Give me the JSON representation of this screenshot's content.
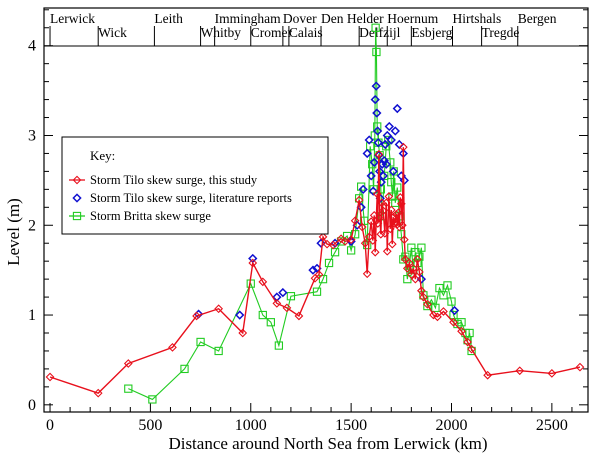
{
  "chart_data": {
    "type": "scatter",
    "xlabel": "Distance around North Sea from Lerwick (km)",
    "ylabel": "Level (m)",
    "xlim": [
      -30,
      2680
    ],
    "ylim": [
      -0.08,
      4.42
    ],
    "xticks": [
      0,
      500,
      1000,
      1500,
      2000,
      2500
    ],
    "yticks": [
      0,
      1,
      2,
      3,
      4
    ],
    "x_minor_step": 100,
    "y_minor_step": 0.2,
    "grid": false,
    "legend_position": "left",
    "legend_title": "Key:",
    "top_station_labels": [
      {
        "name": "Lerwick",
        "x": 0,
        "row": 1
      },
      {
        "name": "Wick",
        "x": 240,
        "row": 2
      },
      {
        "name": "Leith",
        "x": 520,
        "row": 1
      },
      {
        "name": "Whitby",
        "x": 750,
        "row": 2
      },
      {
        "name": "Immingham",
        "x": 820,
        "row": 1
      },
      {
        "name": "Cromer",
        "x": 1000,
        "row": 2
      },
      {
        "name": "Dover",
        "x": 1160,
        "row": 1
      },
      {
        "name": "Calais",
        "x": 1190,
        "row": 2
      },
      {
        "name": "Den Helder",
        "x": 1350,
        "row": 1
      },
      {
        "name": "Delfzijl",
        "x": 1540,
        "row": 2
      },
      {
        "name": "Hoernum",
        "x": 1680,
        "row": 1
      },
      {
        "name": "Esbjerg",
        "x": 1800,
        "row": 2
      },
      {
        "name": "Hirtshals",
        "x": 2005,
        "row": 1
      },
      {
        "name": "Tregde",
        "x": 2150,
        "row": 2
      },
      {
        "name": "Bergen",
        "x": 2330,
        "row": 1
      }
    ],
    "series": [
      {
        "name": "Storm Tilo skew surge, this study",
        "color": "#e8101c",
        "marker": "diamond",
        "connected": true,
        "points": [
          [
            0,
            0.31
          ],
          [
            240,
            0.13
          ],
          [
            390,
            0.46
          ],
          [
            610,
            0.64
          ],
          [
            730,
            0.99
          ],
          [
            840,
            1.07
          ],
          [
            960,
            0.8
          ],
          [
            1010,
            1.58
          ],
          [
            1060,
            1.37
          ],
          [
            1130,
            1.13
          ],
          [
            1180,
            1.08
          ],
          [
            1240,
            0.99
          ],
          [
            1320,
            1.41
          ],
          [
            1340,
            1.45
          ],
          [
            1360,
            1.87
          ],
          [
            1380,
            1.79
          ],
          [
            1410,
            1.78
          ],
          [
            1450,
            1.85
          ],
          [
            1470,
            1.82
          ],
          [
            1500,
            1.84
          ],
          [
            1520,
            2.05
          ],
          [
            1540,
            2.28
          ],
          [
            1555,
            1.98
          ],
          [
            1570,
            1.8
          ],
          [
            1580,
            1.46
          ],
          [
            1590,
            1.87
          ],
          [
            1600,
            2.04
          ],
          [
            1608,
            1.83
          ],
          [
            1615,
            2.11
          ],
          [
            1620,
            1.7
          ],
          [
            1625,
            2.05
          ],
          [
            1630,
            2.35
          ],
          [
            1633,
            2.02
          ],
          [
            1638,
            2.79
          ],
          [
            1643,
            2.08
          ],
          [
            1648,
            1.9
          ],
          [
            1653,
            2.25
          ],
          [
            1660,
            2.16
          ],
          [
            1668,
            1.91
          ],
          [
            1675,
            2.25
          ],
          [
            1680,
            1.71
          ],
          [
            1688,
            2.32
          ],
          [
            1695,
            1.96
          ],
          [
            1700,
            2.17
          ],
          [
            1705,
            1.79
          ],
          [
            1710,
            2.09
          ],
          [
            1715,
            2.02
          ],
          [
            1720,
            2.04
          ],
          [
            1725,
            2.12
          ],
          [
            1730,
            2.01
          ],
          [
            1735,
            2.14
          ],
          [
            1740,
            1.98
          ],
          [
            1745,
            2.31
          ],
          [
            1750,
            2.24
          ],
          [
            1755,
            2.0
          ],
          [
            1760,
            2.87
          ],
          [
            1765,
            1.84
          ],
          [
            1770,
            1.62
          ],
          [
            1780,
            1.52
          ],
          [
            1790,
            1.58
          ],
          [
            1800,
            1.45
          ],
          [
            1810,
            1.52
          ],
          [
            1820,
            1.4
          ],
          [
            1830,
            1.62
          ],
          [
            1840,
            1.48
          ],
          [
            1850,
            1.27
          ],
          [
            1860,
            1.2
          ],
          [
            1880,
            1.12
          ],
          [
            1910,
            1.0
          ],
          [
            1930,
            0.98
          ],
          [
            1960,
            1.04
          ],
          [
            2010,
            0.92
          ],
          [
            2050,
            0.82
          ],
          [
            2080,
            0.7
          ],
          [
            2100,
            0.62
          ],
          [
            2180,
            0.33
          ],
          [
            2340,
            0.38
          ],
          [
            2500,
            0.35
          ],
          [
            2640,
            0.42
          ]
        ]
      },
      {
        "name": "Storm Tilo skew surge, literature reports",
        "color": "#1010d0",
        "marker": "diamond-open",
        "connected": false,
        "points": [
          [
            740,
            1.01
          ],
          [
            945,
            1.0
          ],
          [
            1010,
            1.63
          ],
          [
            1130,
            1.2
          ],
          [
            1160,
            1.25
          ],
          [
            1310,
            1.5
          ],
          [
            1330,
            1.52
          ],
          [
            1350,
            1.8
          ],
          [
            1420,
            1.8
          ],
          [
            1500,
            1.82
          ],
          [
            1530,
            2.0
          ],
          [
            1550,
            2.2
          ],
          [
            1560,
            2.4
          ],
          [
            1580,
            2.8
          ],
          [
            1590,
            2.95
          ],
          [
            1600,
            2.55
          ],
          [
            1610,
            2.38
          ],
          [
            1615,
            2.7
          ],
          [
            1620,
            3.4
          ],
          [
            1625,
            3.55
          ],
          [
            1628,
            3.25
          ],
          [
            1632,
            3.05
          ],
          [
            1635,
            2.92
          ],
          [
            1638,
            2.78
          ],
          [
            1642,
            2.6
          ],
          [
            1645,
            2.3
          ],
          [
            1650,
            2.48
          ],
          [
            1655,
            2.68
          ],
          [
            1660,
            2.55
          ],
          [
            1665,
            2.72
          ],
          [
            1670,
            2.9
          ],
          [
            1675,
            2.68
          ],
          [
            1680,
            3.0
          ],
          [
            1690,
            3.1
          ],
          [
            1700,
            2.95
          ],
          [
            1710,
            2.6
          ],
          [
            1720,
            3.05
          ],
          [
            1730,
            3.3
          ],
          [
            1740,
            2.9
          ],
          [
            1750,
            2.55
          ],
          [
            1760,
            2.8
          ],
          [
            1765,
            2.5
          ],
          [
            1850,
            1.4
          ],
          [
            2015,
            1.05
          ]
        ]
      },
      {
        "name": "Storm Britta skew surge",
        "color": "#22cc22",
        "marker": "square",
        "connected": true,
        "points": [
          [
            390,
            0.18
          ],
          [
            510,
            0.06
          ],
          [
            670,
            0.4
          ],
          [
            750,
            0.7
          ],
          [
            840,
            0.6
          ],
          [
            1000,
            1.35
          ],
          [
            1060,
            1.0
          ],
          [
            1100,
            0.92
          ],
          [
            1140,
            0.66
          ],
          [
            1200,
            1.21
          ],
          [
            1330,
            1.26
          ],
          [
            1360,
            1.4
          ],
          [
            1390,
            1.58
          ],
          [
            1420,
            1.7
          ],
          [
            1450,
            1.82
          ],
          [
            1480,
            1.88
          ],
          [
            1500,
            1.72
          ],
          [
            1520,
            1.9
          ],
          [
            1540,
            2.3
          ],
          [
            1550,
            2.43
          ],
          [
            1565,
            2.05
          ],
          [
            1580,
            1.78
          ],
          [
            1595,
            2.88
          ],
          [
            1605,
            2.68
          ],
          [
            1612,
            2.4
          ],
          [
            1618,
            3.0
          ],
          [
            1622,
            4.2
          ],
          [
            1626,
            3.93
          ],
          [
            1630,
            3.1
          ],
          [
            1636,
            2.92
          ],
          [
            1642,
            2.78
          ],
          [
            1648,
            2.4
          ],
          [
            1655,
            2.1
          ],
          [
            1665,
            2.55
          ],
          [
            1675,
            2.88
          ],
          [
            1685,
            2.95
          ],
          [
            1695,
            2.7
          ],
          [
            1700,
            2.48
          ],
          [
            1706,
            2.32
          ],
          [
            1712,
            2.6
          ],
          [
            1720,
            2.25
          ],
          [
            1730,
            2.42
          ],
          [
            1740,
            2.1
          ],
          [
            1750,
            1.9
          ],
          [
            1760,
            1.62
          ],
          [
            1770,
            1.65
          ],
          [
            1780,
            1.4
          ],
          [
            1790,
            1.55
          ],
          [
            1800,
            1.75
          ],
          [
            1810,
            1.5
          ],
          [
            1820,
            1.7
          ],
          [
            1830,
            1.58
          ],
          [
            1840,
            1.65
          ],
          [
            1850,
            1.75
          ],
          [
            1860,
            1.22
          ],
          [
            1880,
            1.1
          ],
          [
            1900,
            1.17
          ],
          [
            1920,
            1.08
          ],
          [
            1940,
            1.3
          ],
          [
            1960,
            1.22
          ],
          [
            1980,
            1.33
          ],
          [
            2000,
            1.15
          ],
          [
            2010,
            1.0
          ],
          [
            2030,
            0.9
          ],
          [
            2050,
            0.92
          ],
          [
            2070,
            0.8
          ],
          [
            2080,
            0.72
          ],
          [
            2090,
            0.8
          ],
          [
            2100,
            0.6
          ]
        ]
      }
    ]
  }
}
